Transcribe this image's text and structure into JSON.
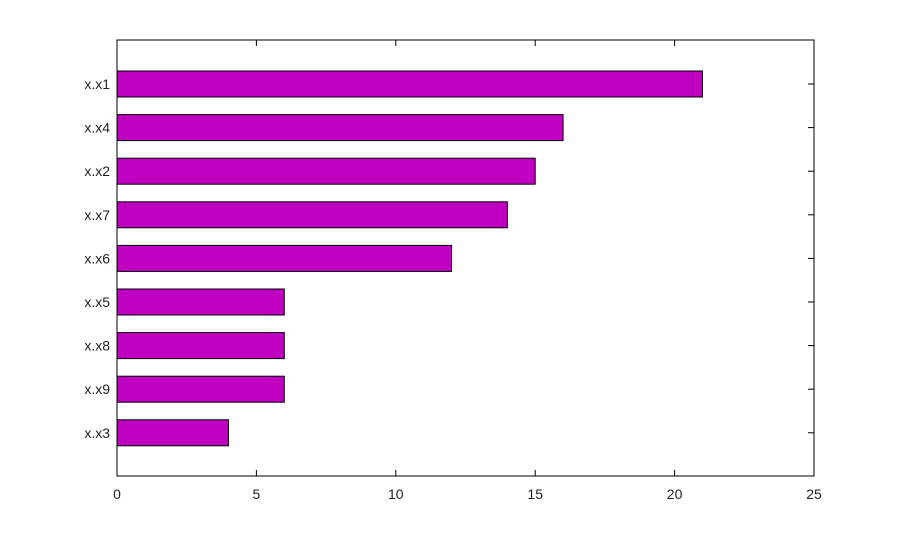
{
  "chart_data": {
    "type": "bar",
    "orientation": "horizontal",
    "title": "",
    "xlabel": "",
    "ylabel": "",
    "categories": [
      "x.x1",
      "x.x4",
      "x.x2",
      "x.x7",
      "x.x6",
      "x.x5",
      "x.x8",
      "x.x9",
      "x.x3"
    ],
    "values": [
      21,
      16,
      15,
      14,
      12,
      6,
      6,
      6,
      4
    ],
    "xlim": [
      0,
      25
    ],
    "xticks": [
      "0",
      "5",
      "10",
      "15",
      "20",
      "25"
    ],
    "grid": false,
    "legend": "none",
    "bar_color": "#c000c0",
    "bar_edge_color": "#000000"
  }
}
